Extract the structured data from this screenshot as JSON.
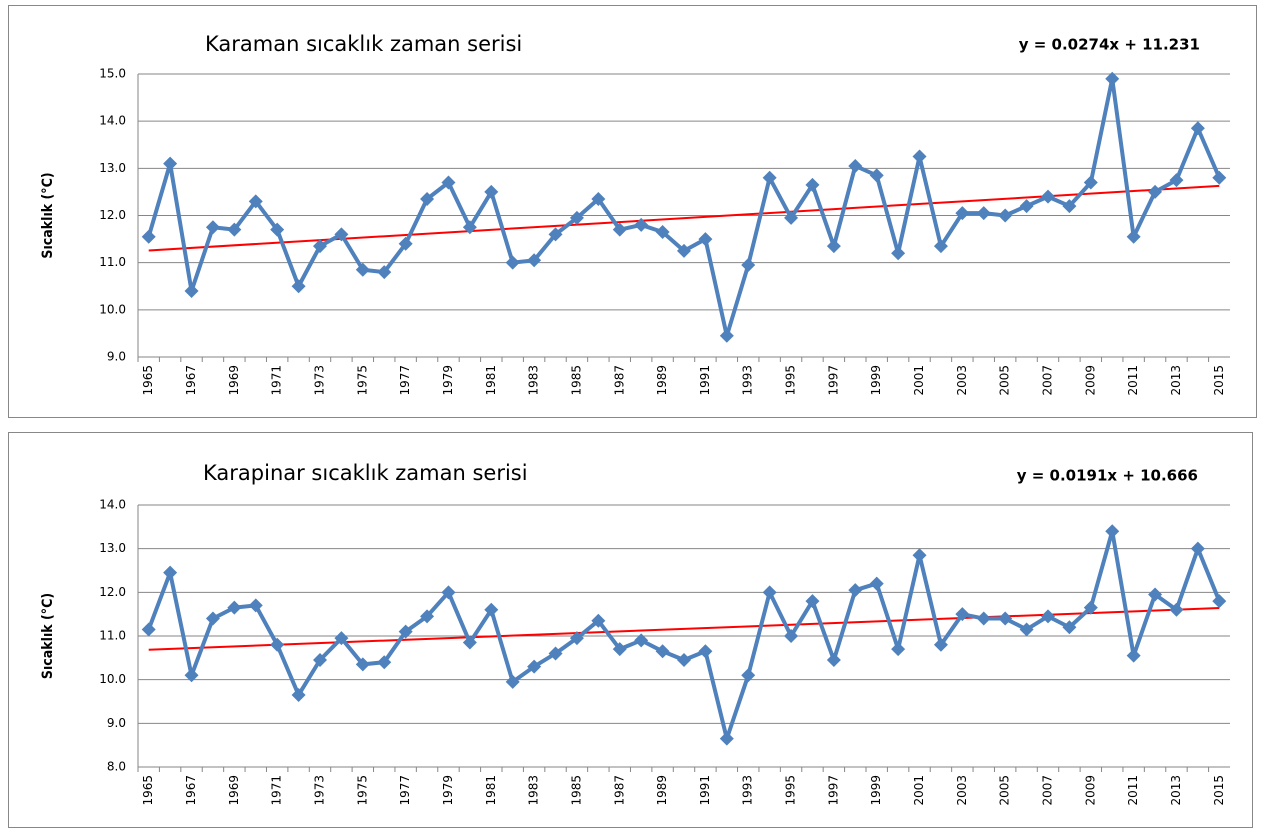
{
  "chart_data": [
    {
      "type": "line",
      "title": "Karaman sıcaklık zaman serisi",
      "ylabel": "Sıcaklık (°C)",
      "annotation": "y = 0.0274x + 11.231",
      "categories": [
        "1965",
        null,
        "1967",
        null,
        "1969",
        null,
        "1971",
        null,
        "1973",
        null,
        "1975",
        null,
        "1977",
        null,
        "1979",
        null,
        "1981",
        null,
        "1983",
        null,
        "1985",
        null,
        "1987",
        null,
        "1989",
        null,
        "1991",
        null,
        "1993",
        null,
        "1995",
        null,
        "1997",
        null,
        "1999",
        null,
        "2001",
        null,
        "2003",
        null,
        "2005",
        null,
        "2007",
        null,
        "2009",
        null,
        "2011",
        null,
        "2013",
        null,
        "2015"
      ],
      "series": [
        {
          "color": "#4f81bd",
          "values": [
            11.55,
            13.1,
            10.4,
            11.75,
            11.7,
            12.3,
            11.7,
            10.5,
            11.35,
            11.6,
            10.85,
            10.8,
            11.4,
            12.35,
            12.7,
            11.75,
            12.5,
            11.0,
            11.05,
            11.6,
            11.95,
            12.35,
            11.7,
            11.8,
            11.65,
            11.25,
            11.5,
            9.45,
            10.95,
            12.8,
            11.95,
            12.65,
            11.35,
            13.05,
            12.85,
            11.2,
            13.25,
            11.35,
            12.05,
            12.05,
            12.0,
            12.2,
            12.4,
            12.2,
            12.7,
            14.9,
            11.55,
            12.5,
            12.75,
            13.85,
            12.8
          ]
        }
      ],
      "trendline": {
        "slope": 0.0274,
        "intercept": 11.231,
        "color": "#ff0000"
      },
      "ylim": [
        9,
        15
      ],
      "yticks": [
        {
          "value": 9,
          "label": "9.0"
        },
        {
          "value": 10,
          "label": "10.0"
        },
        {
          "value": 11,
          "label": "11.0"
        },
        {
          "value": 12,
          "label": "12.0"
        },
        {
          "value": 13,
          "label": "13.0"
        },
        {
          "value": 14,
          "label": "14.0"
        },
        {
          "value": 15,
          "label": "15.0"
        }
      ],
      "grid": true
    },
    {
      "type": "line",
      "title": "Karapinar sıcaklık zaman serisi",
      "ylabel": "Sıcaklık (°C)",
      "annotation": "y = 0.0191x + 10.666",
      "categories": [
        "1965",
        null,
        "1967",
        null,
        "1969",
        null,
        "1971",
        null,
        "1973",
        null,
        "1975",
        null,
        "1977",
        null,
        "1979",
        null,
        "1981",
        null,
        "1983",
        null,
        "1985",
        null,
        "1987",
        null,
        "1989",
        null,
        "1991",
        null,
        "1993",
        null,
        "1995",
        null,
        "1997",
        null,
        "1999",
        null,
        "2001",
        null,
        "2003",
        null,
        "2005",
        null,
        "2007",
        null,
        "2009",
        null,
        "2011",
        null,
        "2013",
        null,
        "2015"
      ],
      "series": [
        {
          "color": "#4f81bd",
          "values": [
            11.15,
            12.45,
            10.1,
            11.4,
            11.65,
            11.7,
            10.8,
            9.65,
            10.45,
            10.95,
            10.35,
            10.4,
            11.1,
            11.45,
            12.0,
            10.85,
            11.6,
            9.95,
            10.3,
            10.6,
            10.95,
            11.35,
            10.7,
            10.9,
            10.65,
            10.45,
            10.65,
            8.65,
            10.1,
            12.0,
            11.0,
            11.8,
            10.45,
            12.05,
            12.2,
            10.7,
            12.85,
            10.8,
            11.5,
            11.4,
            11.4,
            11.15,
            11.45,
            11.2,
            11.65,
            13.4,
            10.55,
            11.95,
            11.6,
            13.0,
            11.8
          ]
        }
      ],
      "trendline": {
        "slope": 0.0191,
        "intercept": 10.666,
        "color": "#ff0000"
      },
      "ylim": [
        8,
        14
      ],
      "yticks": [
        {
          "value": 8,
          "label": "8.0"
        },
        {
          "value": 9,
          "label": "9.0"
        },
        {
          "value": 10,
          "label": "10.0"
        },
        {
          "value": 11,
          "label": "11.0"
        },
        {
          "value": 12,
          "label": "12.0"
        },
        {
          "value": 13,
          "label": "13.0"
        },
        {
          "value": 14,
          "label": "14.0"
        }
      ],
      "grid": true
    }
  ]
}
